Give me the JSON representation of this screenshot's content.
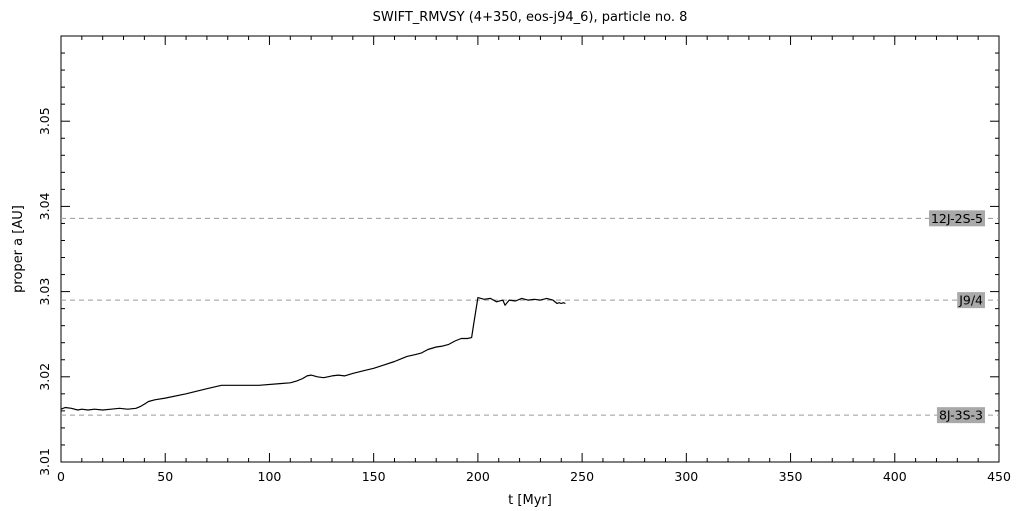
{
  "chart_data": {
    "type": "line",
    "title": "SWIFT_RMVSY (4+350, eos-j94_6), particle no. 8",
    "xlabel": "t [Myr]",
    "ylabel": "proper a [AU]",
    "xlim": [
      0,
      450
    ],
    "ylim": [
      3.01,
      3.06
    ],
    "x_ticks": [
      0,
      50,
      100,
      150,
      200,
      250,
      300,
      350,
      400,
      450
    ],
    "y_ticks": [
      3.01,
      3.02,
      3.03,
      3.04,
      3.05
    ],
    "grid": false,
    "series": [
      {
        "x": [
          0,
          2,
          5,
          8,
          10,
          13,
          16,
          20,
          24,
          28,
          32,
          36,
          38,
          40,
          42,
          45,
          50,
          60,
          70,
          77,
          85,
          95,
          105,
          110,
          113,
          116,
          118,
          120,
          123,
          126,
          130,
          133,
          136,
          140,
          145,
          150,
          155,
          160,
          163,
          166,
          170,
          173,
          176,
          180,
          183,
          186,
          189,
          192,
          195,
          197,
          198,
          200,
          203,
          206,
          209,
          212,
          213,
          215,
          218,
          221,
          224,
          227,
          230,
          233,
          236,
          238,
          239,
          240,
          241,
          242
        ],
        "y": [
          3.0162,
          3.0164,
          3.0163,
          3.0161,
          3.0162,
          3.0161,
          3.0162,
          3.0161,
          3.0162,
          3.0163,
          3.0162,
          3.0163,
          3.0165,
          3.0168,
          3.0171,
          3.0173,
          3.0175,
          3.018,
          3.0186,
          3.019,
          3.019,
          3.019,
          3.0192,
          3.0193,
          3.0195,
          3.0198,
          3.0201,
          3.0202,
          3.02,
          3.0199,
          3.0201,
          3.0202,
          3.0201,
          3.0204,
          3.0207,
          3.021,
          3.0214,
          3.0218,
          3.0221,
          3.0224,
          3.0226,
          3.0228,
          3.0232,
          3.0235,
          3.0236,
          3.0238,
          3.0242,
          3.0245,
          3.0245,
          3.0246,
          3.0262,
          3.0293,
          3.0291,
          3.0292,
          3.0288,
          3.029,
          3.0284,
          3.029,
          3.0289,
          3.0292,
          3.029,
          3.0291,
          3.029,
          3.0292,
          3.029,
          3.0286,
          3.0287,
          3.0286,
          3.0287,
          3.0286
        ]
      }
    ],
    "resonances": [
      {
        "label": "12J-2S-5",
        "a": 3.0386
      },
      {
        "label": "J9/4",
        "a": 3.029
      },
      {
        "label": "8J-3S-3",
        "a": 3.0155
      }
    ]
  }
}
